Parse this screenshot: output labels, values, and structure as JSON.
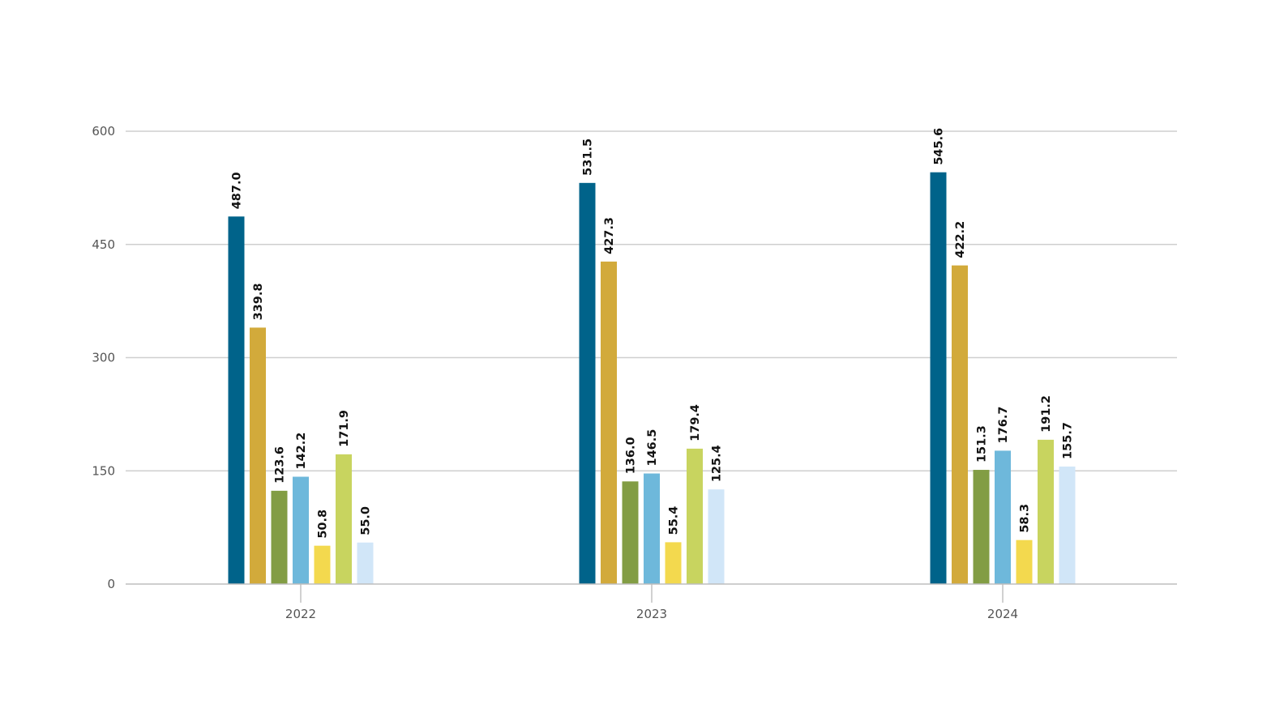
{
  "chart_data": {
    "type": "bar",
    "title": "",
    "xlabel": "",
    "ylabel": "",
    "ylim": [
      0,
      600
    ],
    "yticks": [
      0,
      150,
      300,
      450,
      600
    ],
    "grid": true,
    "legend": "none",
    "categories": [
      "2022",
      "2023",
      "2024"
    ],
    "value_format": "one_decimal",
    "series": [
      {
        "color": "#00638a",
        "values": [
          487.0,
          531.5,
          545.6
        ]
      },
      {
        "color": "#d2aa3b",
        "values": [
          339.8,
          427.3,
          422.2
        ]
      },
      {
        "color": "#829d44",
        "values": [
          123.6,
          136.0,
          151.3
        ]
      },
      {
        "color": "#6eb8db",
        "values": [
          142.2,
          146.5,
          176.7
        ]
      },
      {
        "color": "#f3d94e",
        "values": [
          50.8,
          55.4,
          58.3
        ]
      },
      {
        "color": "#c8d45f",
        "values": [
          171.9,
          179.4,
          191.2
        ]
      },
      {
        "color": "#d1e6f8",
        "values": [
          55.0,
          125.4,
          155.7
        ]
      }
    ]
  }
}
